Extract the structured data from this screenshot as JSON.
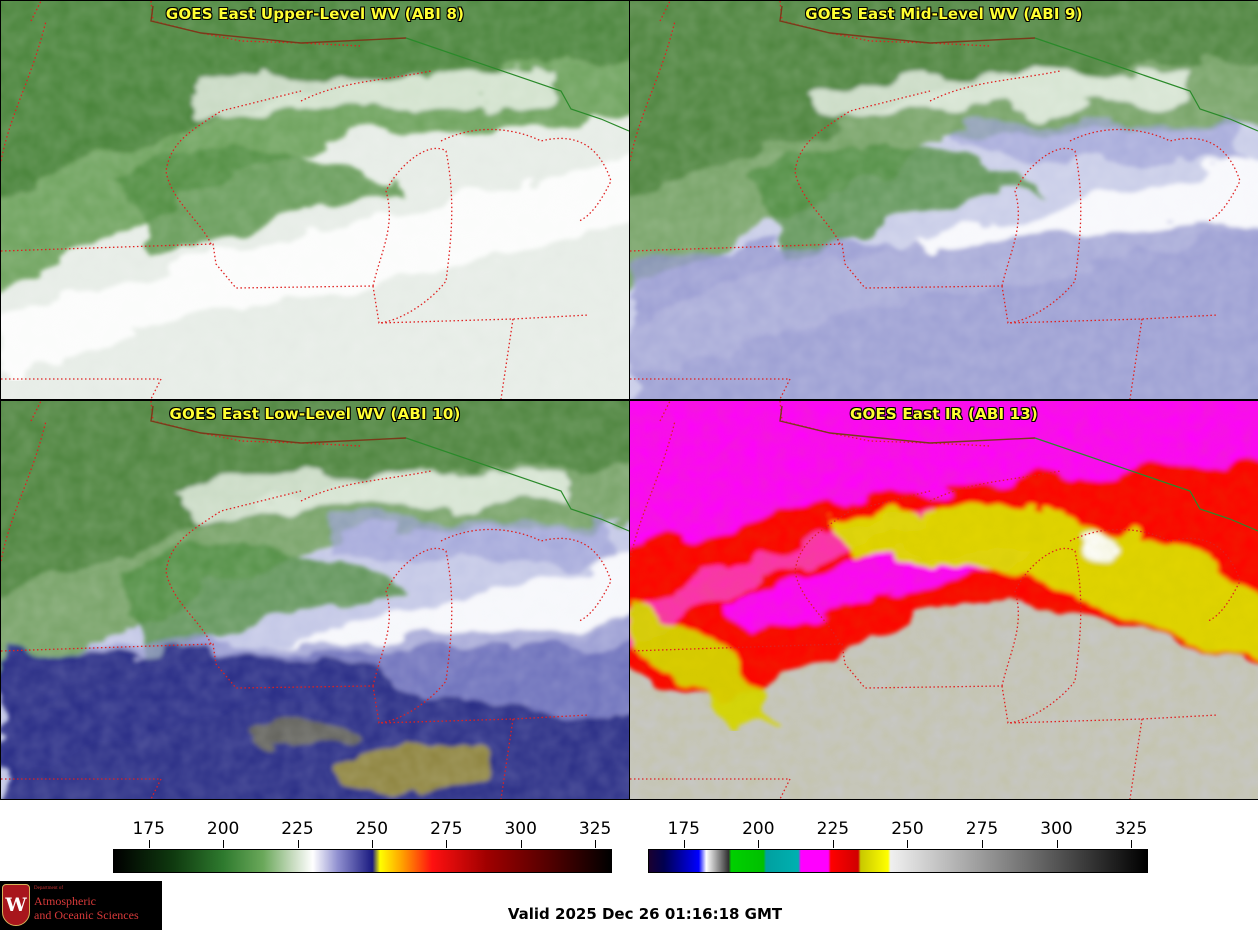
{
  "panels": [
    {
      "title": "GOES East Upper-Level WV (ABI 8)",
      "palette": "wv"
    },
    {
      "title": "GOES East Mid-Level WV (ABI 9)",
      "palette": "wv"
    },
    {
      "title": "GOES East Low-Level WV (ABI 10)",
      "palette": "wv"
    },
    {
      "title": "GOES East IR (ABI 13)",
      "palette": "ir"
    }
  ],
  "colorbars": {
    "wv": {
      "ticks": [
        "175",
        "200",
        "225",
        "250",
        "275",
        "300",
        "325"
      ],
      "range": [
        163,
        330
      ]
    },
    "ir": {
      "ticks": [
        "175",
        "200",
        "225",
        "250",
        "275",
        "300",
        "325"
      ],
      "range": [
        163,
        330
      ]
    }
  },
  "valid_time": "Valid 2025 Dec 26 01:16:18 GMT",
  "logo": {
    "dept": "Department of",
    "line1": "Atmospheric",
    "line2": "and Oceanic Sciences",
    "seal_letter": "W"
  },
  "colors": {
    "border_state": "#e02020",
    "border_country": "#2a8a2a",
    "title": "#ffff33"
  }
}
